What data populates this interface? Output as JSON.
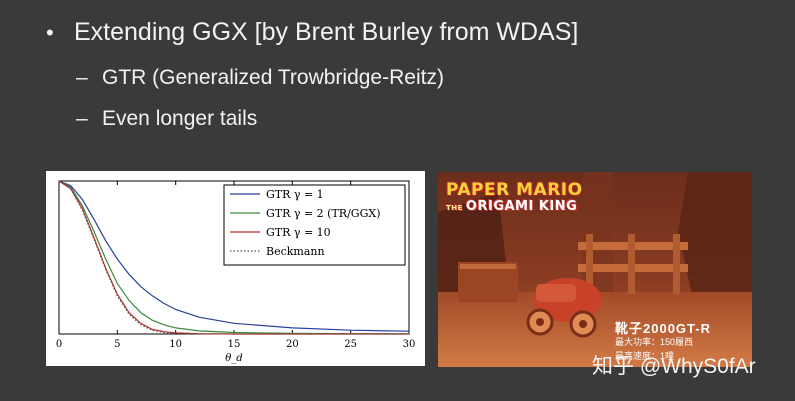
{
  "slide": {
    "bullet": "Extending GGX [by Brent Burley from WDAS]",
    "sub_items": [
      "GTR (Generalized Trowbridge-Reitz)",
      "Even longer tails"
    ],
    "bullet_glyph": "•",
    "dash_glyph": "–"
  },
  "plot": {
    "legend": [
      {
        "label": "GTR γ = 1",
        "color": "#2a3fa0",
        "style": "solid"
      },
      {
        "label": "GTR γ = 2 (TR/GGX)",
        "color": "#3c8a3c",
        "style": "solid"
      },
      {
        "label": "GTR γ = 10",
        "color": "#c22b2b",
        "style": "solid"
      },
      {
        "label": "Beckmann",
        "color": "#555555",
        "style": "dotted"
      }
    ],
    "x_ticks": [
      "0",
      "5",
      "10",
      "15",
      "20",
      "25",
      "30"
    ],
    "x_label": "θ_d"
  },
  "chart_data": {
    "type": "line",
    "xlabel": "θ_d",
    "ylabel": "",
    "xlim": [
      0,
      30
    ],
    "ylim": [
      0,
      1
    ],
    "x": [
      0,
      1,
      2,
      3,
      4,
      5,
      6,
      7,
      8,
      9,
      10,
      12,
      15,
      20,
      25,
      30
    ],
    "series": [
      {
        "name": "GTR γ = 1",
        "values": [
          1.0,
          0.97,
          0.88,
          0.75,
          0.61,
          0.49,
          0.39,
          0.31,
          0.25,
          0.2,
          0.16,
          0.11,
          0.07,
          0.04,
          0.025,
          0.018
        ]
      },
      {
        "name": "GTR γ = 2 (TR/GGX)",
        "values": [
          1.0,
          0.96,
          0.84,
          0.67,
          0.49,
          0.33,
          0.22,
          0.14,
          0.09,
          0.06,
          0.04,
          0.02,
          0.01,
          0.004,
          0.002,
          0.001
        ]
      },
      {
        "name": "GTR γ = 10",
        "values": [
          1.0,
          0.95,
          0.82,
          0.63,
          0.43,
          0.26,
          0.14,
          0.07,
          0.03,
          0.015,
          0.007,
          0.002,
          0.0,
          0.0,
          0.0,
          0.0
        ]
      },
      {
        "name": "Beckmann",
        "values": [
          1.0,
          0.95,
          0.81,
          0.62,
          0.42,
          0.25,
          0.13,
          0.06,
          0.025,
          0.01,
          0.004,
          0.001,
          0.0,
          0.0,
          0.0,
          0.0
        ]
      }
    ]
  },
  "game": {
    "logo_line1": "PAPER MARIO",
    "logo_the": "THE",
    "logo_line2": "ORIGAMI KING",
    "car_name": "靴子2000GT-R",
    "stat1": "最大功率：150履西",
    "stat2": "最高速度：1噗"
  },
  "watermark": "知乎 @WhyS0fAr"
}
